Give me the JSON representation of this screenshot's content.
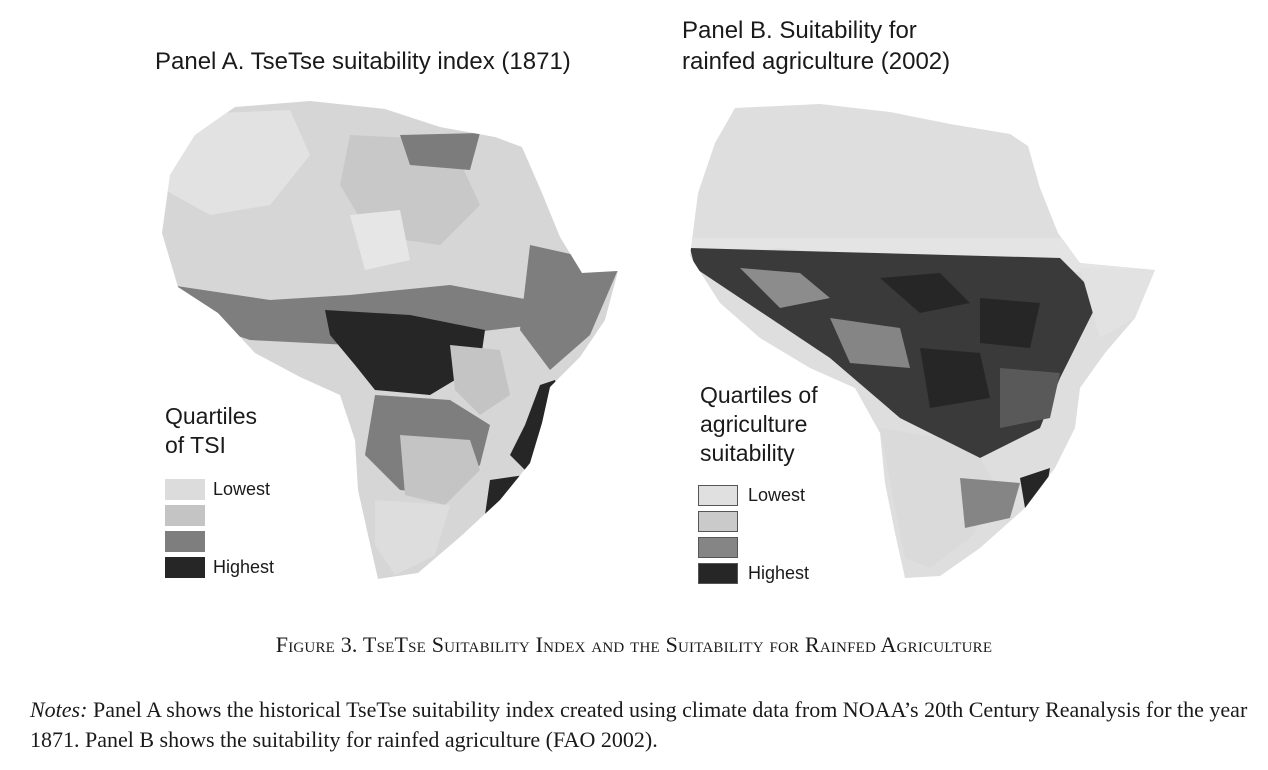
{
  "panel_a": {
    "title": "Panel A. TseTse suitability index (1871)",
    "legend_title_line1": "Quartiles",
    "legend_title_line2": "of TSI",
    "legend": [
      {
        "label": "Lowest",
        "color": "#dcdcdc"
      },
      {
        "label": "",
        "color": "#c4c4c4"
      },
      {
        "label": "",
        "color": "#7e7e7e"
      },
      {
        "label": "Highest",
        "color": "#262626"
      }
    ]
  },
  "panel_b": {
    "title_line1": "Panel B. Suitability for",
    "title_line2": "rainfed agriculture (2002)",
    "legend_title_line1": "Quartiles of",
    "legend_title_line2": "agriculture",
    "legend_title_line3": "suitability",
    "legend": [
      {
        "label": "Lowest",
        "color": "#e0e0e0"
      },
      {
        "label": "",
        "color": "#cacaca"
      },
      {
        "label": "",
        "color": "#858585"
      },
      {
        "label": "Highest",
        "color": "#262626"
      }
    ]
  },
  "caption": "Figure 3. TseTse Suitability Index and the Suitability for Rainfed Agriculture",
  "notes": {
    "label": "Notes:",
    "text": " Panel A shows the historical TseTse suitability index created using climate data from NOAA’s 20th Century Reanalysis for the year 1871. Panel B shows the suitability for rainfed agriculture (FAO 2002)."
  }
}
